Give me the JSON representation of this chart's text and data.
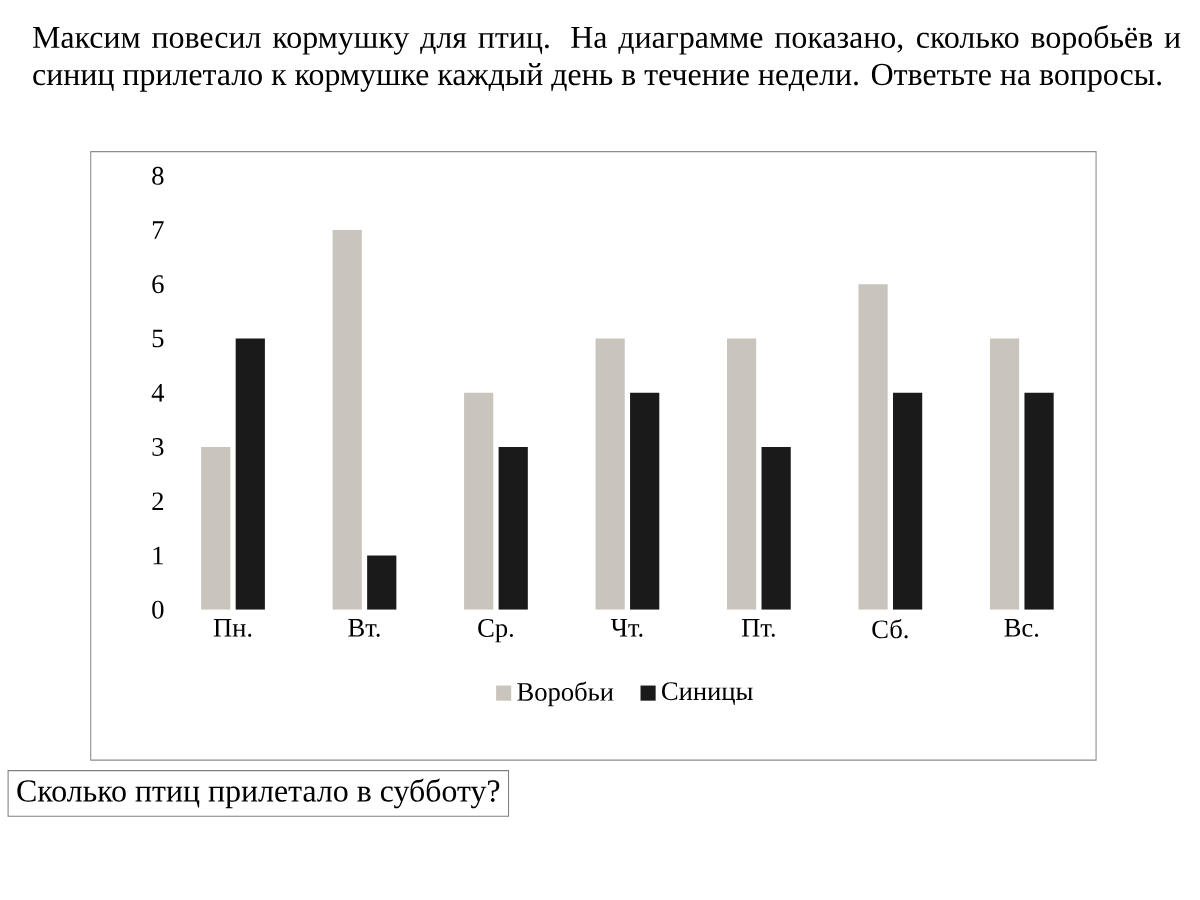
{
  "chart_data": {
    "type": "bar",
    "title": "Максим повесил кормушку для птиц. На диаграмме показано, сколько воробьёв и синиц прилетало к кормушке каждый день в течение недели. Ответьте на вопросы.",
    "annotations": [
      "Сколько птиц прилетало в субботу?"
    ],
    "categories": [
      "Пн.",
      "Вт.",
      "Ср.",
      "Чт.",
      "Пт.",
      "Сб.",
      "Вс."
    ],
    "series": [
      {
        "name": "Воробьи",
        "color": "#c9c5bd",
        "values": [
          3,
          7,
          4,
          5,
          5,
          6,
          5
        ]
      },
      {
        "name": "Синицы",
        "color": "#1a1a1a",
        "values": [
          5,
          1,
          3,
          4,
          3,
          4,
          4
        ]
      }
    ],
    "ylim": [
      0,
      8
    ],
    "yticks": [
      0,
      1,
      2,
      3,
      4,
      5,
      6,
      7,
      8
    ],
    "legend": "bottom",
    "grid": false
  }
}
